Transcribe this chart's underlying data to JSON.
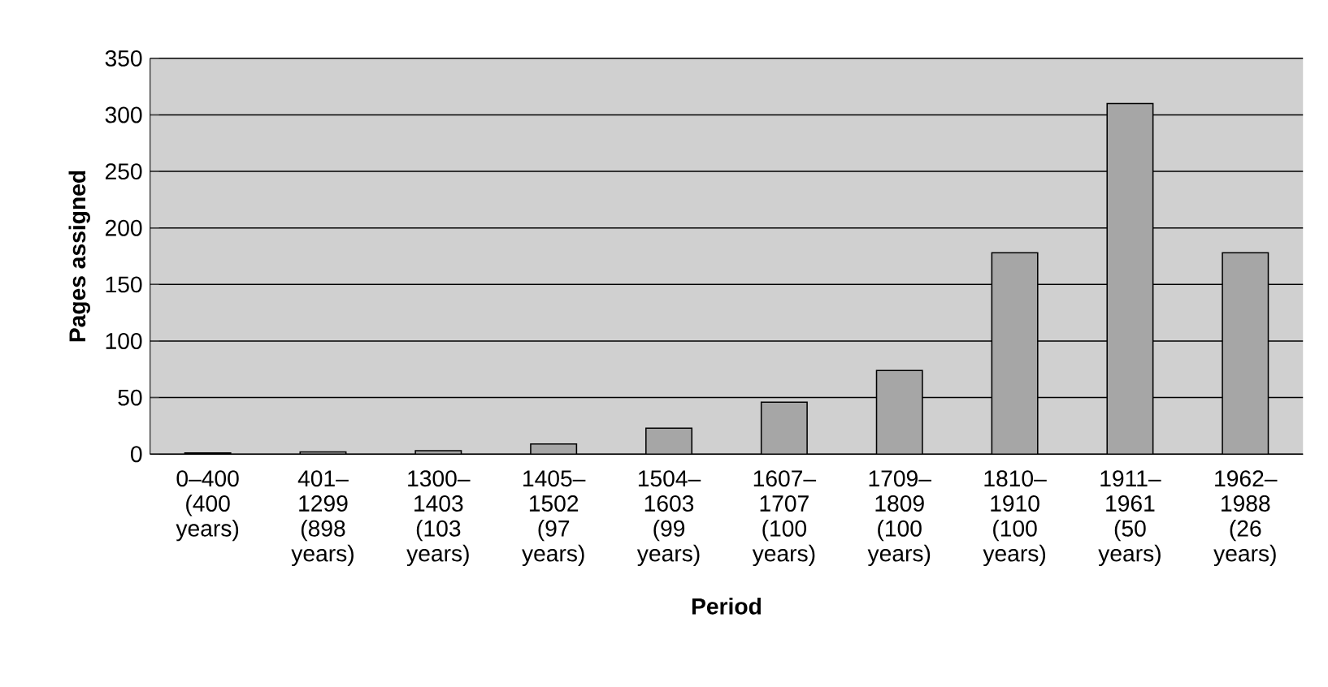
{
  "chart_data": {
    "type": "bar",
    "xlabel": "Period",
    "ylabel": "Pages assigned",
    "categories": [
      "0–400 (400 years)",
      "401–1299 (898 years)",
      "1300–1403 (103 years)",
      "1405–1502 (97 years)",
      "1504–1603 (99 years)",
      "1607–1707 (100 years)",
      "1709–1809 (100 years)",
      "1810–1910 (100 years)",
      "1911–1961 (50 years)",
      "1962–1988 (26 years)"
    ],
    "values": [
      1,
      2,
      3,
      9,
      23,
      46,
      74,
      178,
      310,
      178
    ],
    "color": "#a6a6a6",
    "ylim": [
      0,
      350
    ],
    "yticks": [
      0,
      50,
      100,
      150,
      200,
      250,
      300,
      350
    ],
    "grid": "y"
  }
}
